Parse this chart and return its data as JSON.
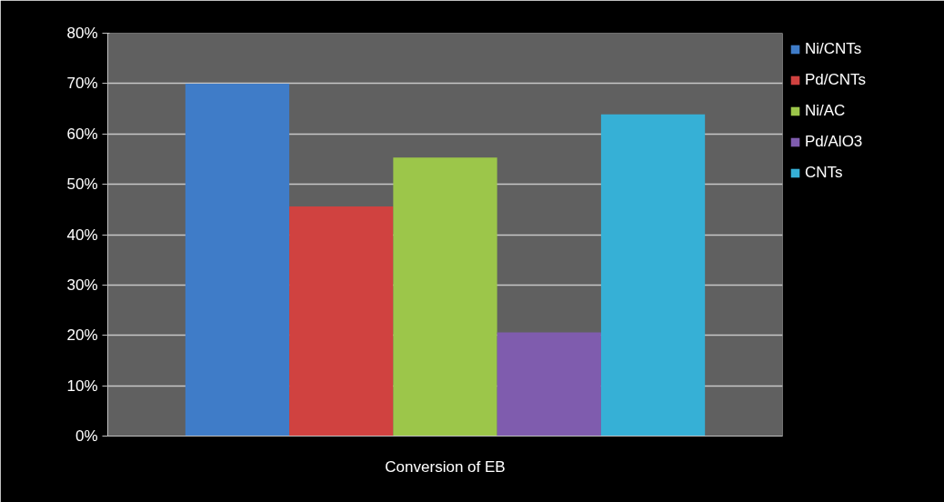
{
  "chart_data": {
    "type": "bar",
    "categories": [
      "Conversion of EB"
    ],
    "series": [
      {
        "name": "Ni/CNTs",
        "color": "#3f7cc8",
        "values": [
          70
        ]
      },
      {
        "name": "Pd/CNTs",
        "color": "#d04240",
        "values": [
          45.6
        ]
      },
      {
        "name": "Ni/AC",
        "color": "#9cc64a",
        "values": [
          55.3
        ]
      },
      {
        "name": "Pd/AlO3",
        "color": "#7f5cae",
        "values": [
          20.6
        ]
      },
      {
        "name": "CNTs",
        "color": "#36b0d6",
        "values": [
          63.9
        ]
      }
    ],
    "ylim": [
      0,
      80
    ],
    "yticks": [
      {
        "value": 0,
        "label": "0%"
      },
      {
        "value": 10,
        "label": "10%"
      },
      {
        "value": 20,
        "label": "20%"
      },
      {
        "value": 30,
        "label": "30%"
      },
      {
        "value": 40,
        "label": "40%"
      },
      {
        "value": 50,
        "label": "50%"
      },
      {
        "value": 60,
        "label": "60%"
      },
      {
        "value": 70,
        "label": "70%"
      },
      {
        "value": 80,
        "label": "80%"
      }
    ],
    "grid": "y",
    "legend": "right"
  }
}
